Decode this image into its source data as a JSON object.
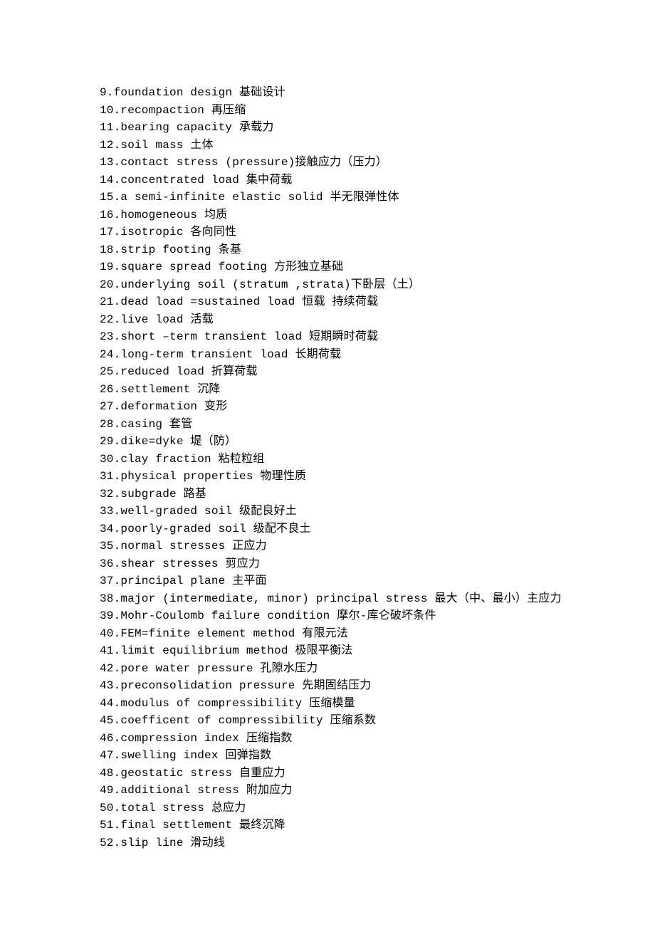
{
  "page": {
    "background_color": "#ffffff",
    "text_color": "#000000",
    "font_family_latin": "Courier New",
    "font_family_cjk": "SimSun",
    "font_size": 16,
    "line_height": 24.5
  },
  "items": [
    {
      "num": "9",
      "text": "foundation design 基础设计"
    },
    {
      "num": "10",
      "text": "recompaction 再压缩"
    },
    {
      "num": "11",
      "text": "bearing capacity 承载力"
    },
    {
      "num": "12",
      "text": "soil mass 土体"
    },
    {
      "num": "13",
      "text": "contact stress (pressure)接触应力（压力）"
    },
    {
      "num": "14",
      "text": "concentrated load 集中荷载"
    },
    {
      "num": "15",
      "text": "a semi-infinite elastic solid 半无限弹性体"
    },
    {
      "num": "16",
      "text": "homogeneous 均质"
    },
    {
      "num": "17",
      "text": "isotropic 各向同性"
    },
    {
      "num": "18",
      "text": "strip footing 条基"
    },
    {
      "num": "19",
      "text": "square spread footing 方形独立基础"
    },
    {
      "num": "20",
      "text": "underlying soil (stratum ,strata)下卧层（土）"
    },
    {
      "num": "21",
      "text": "dead load =sustained load 恒载 持续荷载"
    },
    {
      "num": "22",
      "text": "live load 活载"
    },
    {
      "num": "23",
      "text": "short –term transient load 短期瞬时荷载"
    },
    {
      "num": "24",
      "text": "long-term transient load 长期荷载"
    },
    {
      "num": "25",
      "text": "reduced load 折算荷载"
    },
    {
      "num": "26",
      "text": "settlement 沉降"
    },
    {
      "num": "27",
      "text": "deformation 变形"
    },
    {
      "num": "28",
      "text": "casing 套管"
    },
    {
      "num": "29",
      "text": "dike=dyke 堤（防）"
    },
    {
      "num": "30",
      "text": "clay fraction 粘粒粒组"
    },
    {
      "num": "31",
      "text": "physical properties 物理性质"
    },
    {
      "num": "32",
      "text": "subgrade 路基"
    },
    {
      "num": "33",
      "text": "well-graded soil 级配良好土"
    },
    {
      "num": "34",
      "text": "poorly-graded soil 级配不良土"
    },
    {
      "num": "35",
      "text": "normal stresses 正应力"
    },
    {
      "num": "36",
      "text": "shear stresses 剪应力"
    },
    {
      "num": "37",
      "text": "principal plane 主平面"
    },
    {
      "num": "38",
      "text": "major (intermediate, minor) principal stress 最大（中、最小）主应力"
    },
    {
      "num": "39",
      "text": "Mohr-Coulomb failure condition 摩尔-库仑破坏条件"
    },
    {
      "num": "40",
      "text": "FEM=finite element method 有限元法"
    },
    {
      "num": "41",
      "text": "limit equilibrium method 极限平衡法"
    },
    {
      "num": "42",
      "text": "pore water pressure 孔隙水压力"
    },
    {
      "num": "43",
      "text": "preconsolidation pressure 先期固结压力"
    },
    {
      "num": "44",
      "text": "modulus of compressibility 压缩模量"
    },
    {
      "num": "45",
      "text": "coefficent of compressibility 压缩系数"
    },
    {
      "num": "46",
      "text": "compression index 压缩指数"
    },
    {
      "num": "47",
      "text": "swelling index 回弹指数"
    },
    {
      "num": "48",
      "text": "geostatic stress 自重应力"
    },
    {
      "num": "49",
      "text": "additional stress 附加应力"
    },
    {
      "num": "50",
      "text": "total stress 总应力"
    },
    {
      "num": "51",
      "text": "final settlement 最终沉降"
    },
    {
      "num": "52",
      "text": "slip line 滑动线"
    }
  ]
}
